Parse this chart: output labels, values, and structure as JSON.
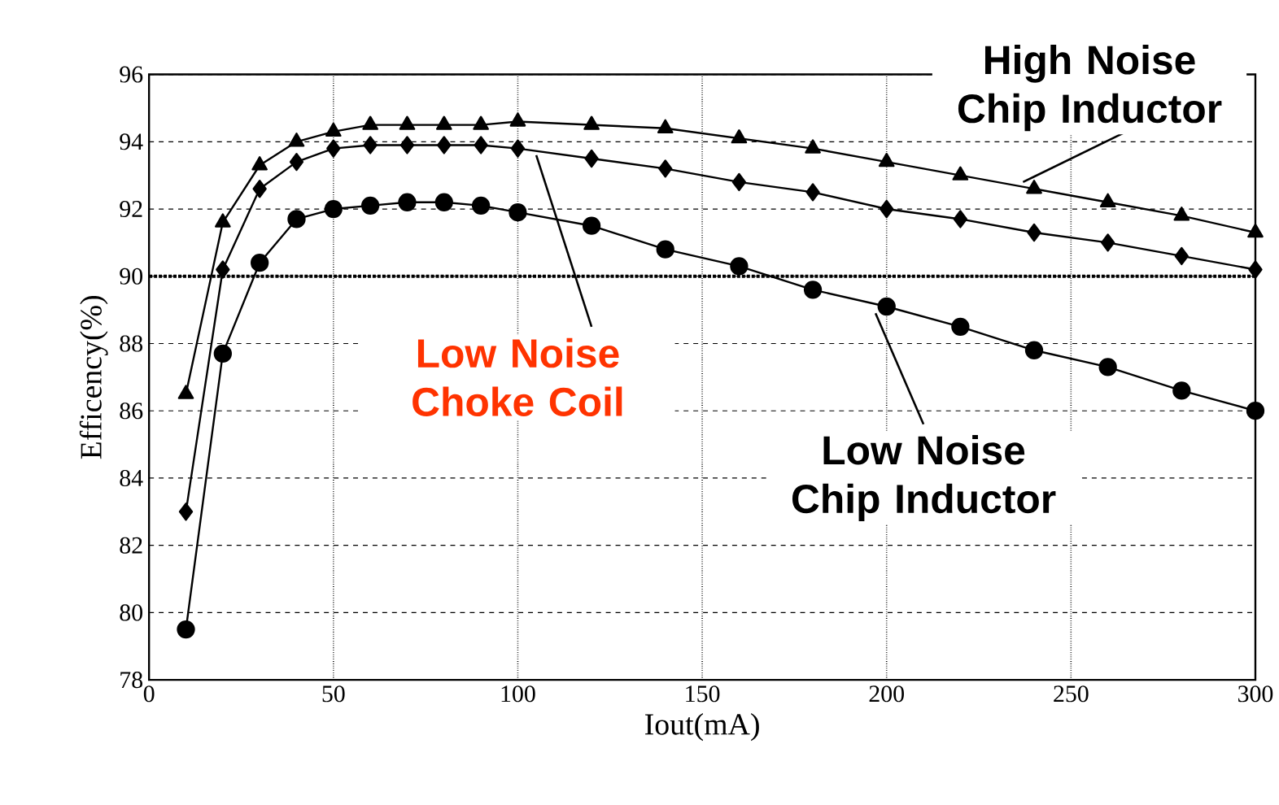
{
  "chart_data": {
    "type": "line",
    "xlabel": "Iout(mA)",
    "ylabel": "Efficency(%)",
    "x": [
      10,
      20,
      30,
      40,
      50,
      60,
      70,
      80,
      90,
      100,
      120,
      140,
      160,
      180,
      200,
      220,
      240,
      260,
      280,
      300
    ],
    "series": [
      {
        "name": "High Noise Chip Inductor",
        "color": "#000000",
        "marker": "triangle",
        "values": [
          86.5,
          91.6,
          93.3,
          94.0,
          94.3,
          94.5,
          94.5,
          94.5,
          94.5,
          94.6,
          94.5,
          94.4,
          94.1,
          93.8,
          93.4,
          93.0,
          92.6,
          92.2,
          91.8,
          91.3
        ]
      },
      {
        "name": "Low Noise Choke Coil",
        "color": "#000000",
        "marker": "diamond",
        "values": [
          83.0,
          90.2,
          92.6,
          93.4,
          93.8,
          93.9,
          93.9,
          93.9,
          93.9,
          93.8,
          93.5,
          93.2,
          92.8,
          92.5,
          92.0,
          91.7,
          91.3,
          91.0,
          90.6,
          90.2
        ]
      },
      {
        "name": "Low Noise Chip Inductor",
        "color": "#000000",
        "marker": "circle",
        "values": [
          79.5,
          87.7,
          90.4,
          91.7,
          92.0,
          92.1,
          92.2,
          92.2,
          92.1,
          91.9,
          91.5,
          90.8,
          90.3,
          89.6,
          89.1,
          88.5,
          87.8,
          87.3,
          86.6,
          86.0
        ]
      }
    ],
    "xlim": [
      0,
      300
    ],
    "xticks": [
      0,
      50,
      100,
      150,
      200,
      250,
      300
    ],
    "ylim": [
      78,
      96
    ],
    "yticks": [
      78,
      80,
      82,
      84,
      86,
      88,
      90,
      92,
      94,
      96
    ],
    "grid": true,
    "line_style": "solid",
    "ref_lines": [
      {
        "axis": "y",
        "value": 90
      }
    ]
  }
}
